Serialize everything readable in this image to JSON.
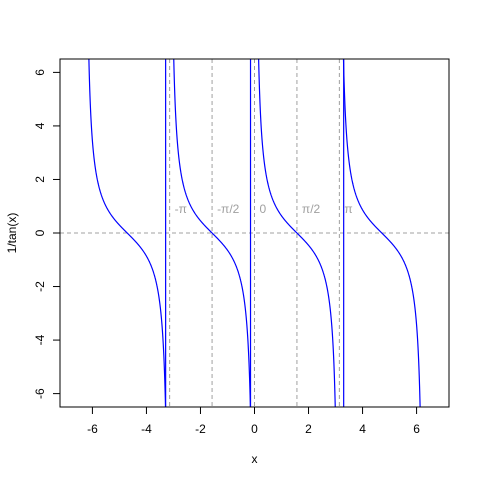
{
  "chart_data": {
    "type": "line",
    "title": "",
    "xlabel": "x",
    "ylabel": "1/tan(x)",
    "xlim": [
      -7.2,
      7.2
    ],
    "ylim": [
      -6.5,
      6.5
    ],
    "x_ticks": [
      -6,
      -4,
      -2,
      0,
      2,
      4,
      6
    ],
    "y_ticks": [
      -6,
      -4,
      -2,
      0,
      2,
      4,
      6
    ],
    "x_tick_labels": [
      "-6",
      "-4",
      "-2",
      "0",
      "2",
      "4",
      "6"
    ],
    "y_tick_labels": [
      "-6",
      "-4",
      "-2",
      "0",
      "2",
      "4",
      "6"
    ],
    "grid": false,
    "series": [
      {
        "function": "1/tan(x)",
        "x_range": [
          -2.0,
          2.0
        ],
        "unit": "pi",
        "color": "#0000ff"
      }
    ],
    "asymptotes": {
      "x": [
        -3.2898,
        -0.1473,
        3.3012
      ],
      "color": "#0000ff"
    },
    "reference_lines": {
      "vertical": [
        -3.1416,
        -1.5708,
        0,
        1.5708,
        3.1416
      ],
      "horizontal": [
        0
      ],
      "color": "#a0a0a0",
      "style": "dashed"
    },
    "annotations": [
      {
        "text": "-π",
        "x": -3.1416,
        "y": 0.45
      },
      {
        "text": "-π/2",
        "x": -1.5708,
        "y": 0.45
      },
      {
        "text": "0",
        "x": 0,
        "y": 0.45
      },
      {
        "text": "π/2",
        "x": 1.5708,
        "y": 0.45
      },
      {
        "text": "π",
        "x": 3.1416,
        "y": 0.45
      }
    ]
  }
}
